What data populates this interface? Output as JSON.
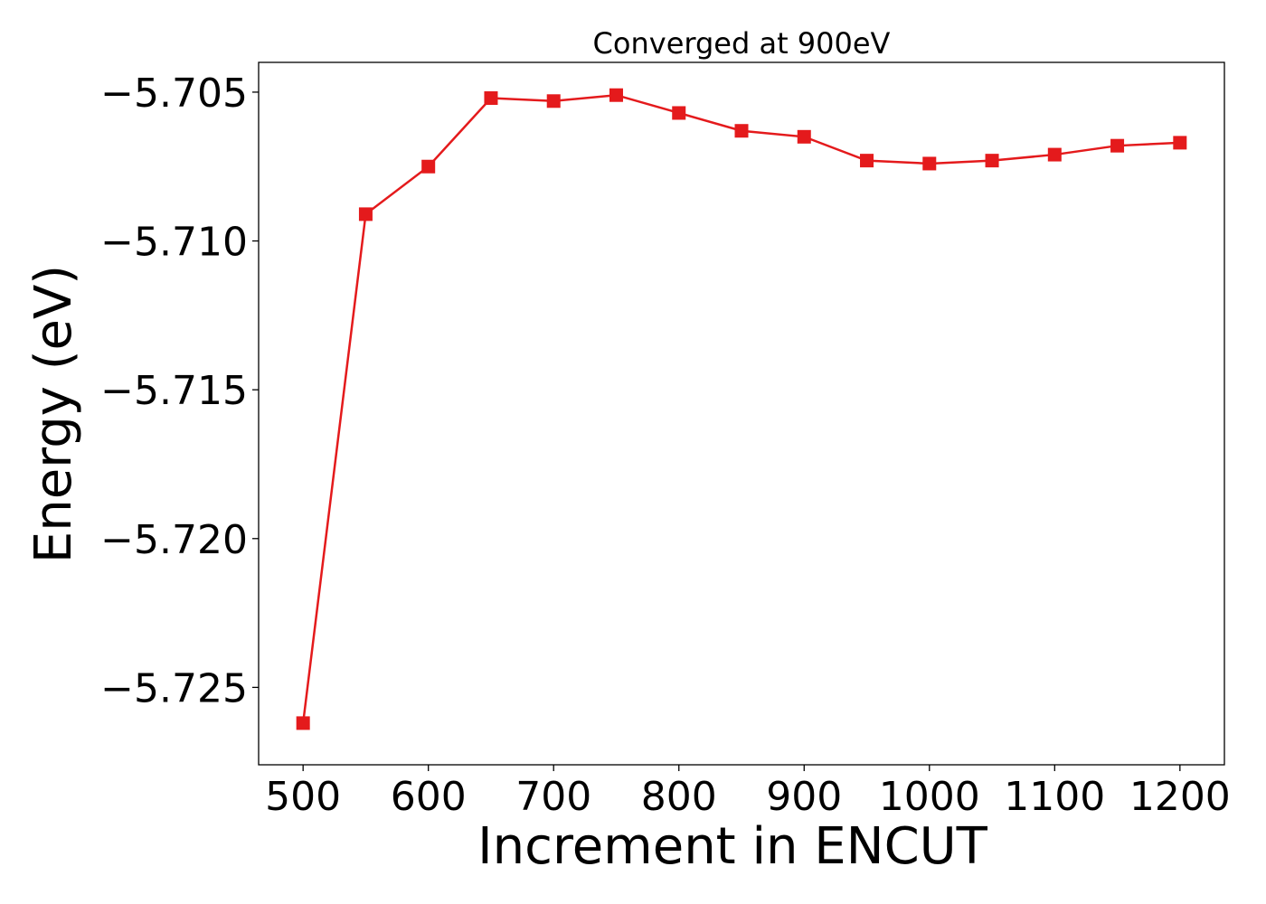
{
  "chart_data": {
    "type": "line",
    "title": "Converged at 900eV",
    "xlabel": "Increment in ENCUT",
    "ylabel": "Energy (eV)",
    "x": [
      500,
      550,
      600,
      650,
      700,
      750,
      800,
      850,
      900,
      950,
      1000,
      1050,
      1100,
      1150,
      1200
    ],
    "series": [
      {
        "values": [
          -5.7262,
          -5.7091,
          -5.7075,
          -5.7052,
          -5.7053,
          -5.7051,
          -5.7057,
          -5.7063,
          -5.7065,
          -5.7073,
          -5.7074,
          -5.7073,
          -5.7071,
          -5.7068,
          -5.7067
        ],
        "color": "#e41a1c",
        "marker": "square"
      }
    ],
    "xticks": [
      500,
      600,
      700,
      800,
      900,
      1000,
      1100,
      1200
    ],
    "xtick_labels": [
      "500",
      "600",
      "700",
      "800",
      "900",
      "1000",
      "1100",
      "1200"
    ],
    "yticks": [
      -5.705,
      -5.71,
      -5.715,
      -5.72,
      -5.725
    ],
    "ytick_labels": [
      "−5.705",
      "−5.710",
      "−5.715",
      "−5.720",
      "−5.725"
    ],
    "xlim": [
      464.5,
      1235.5
    ],
    "ylim": [
      -5.7276,
      -5.704
    ],
    "grid": false,
    "legend": "none"
  }
}
